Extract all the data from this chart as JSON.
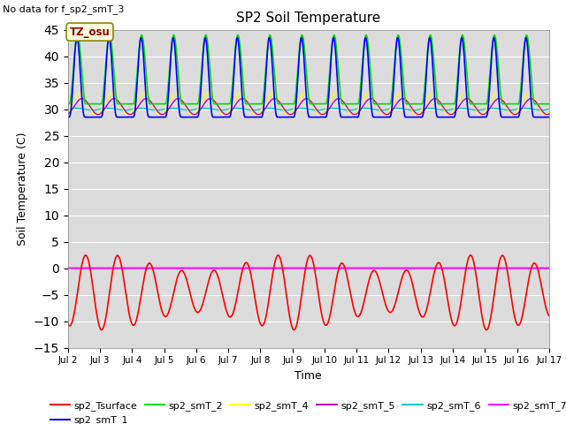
{
  "title": "SP2 Soil Temperature",
  "no_data_text": "No data for f_sp2_smT_3",
  "tz_label": "TZ_osu",
  "ylabel": "Soil Temperature (C)",
  "xlabel": "Time",
  "ylim": [
    -15,
    45
  ],
  "yticks": [
    -15,
    -10,
    -5,
    0,
    5,
    10,
    15,
    20,
    25,
    30,
    35,
    40,
    45
  ],
  "xstart": 2,
  "xend": 17,
  "xtick_labels": [
    "Jul 2",
    "Jul 3",
    "Jul 4",
    "Jul 5",
    "Jul 6",
    "Jul 7",
    "Jul 8",
    "Jul 9",
    "Jul 10",
    "Jul 11",
    "Jul 12",
    "Jul 13",
    "Jul 14",
    "Jul 15",
    "Jul 16",
    "Jul 17"
  ],
  "bg_color": "#dcdcdc",
  "fig_color": "#ffffff",
  "colors": {
    "sp2_Tsurface": "#ff0000",
    "sp2_smT_1": "#0000ff",
    "sp2_smT_2": "#00dd00",
    "sp2_smT_4": "#ffff00",
    "sp2_smT_5": "#bb00bb",
    "sp2_smT_6": "#00cccc",
    "sp2_smT_7": "#ff00ff"
  },
  "period": 1.0,
  "n_points": 2000
}
